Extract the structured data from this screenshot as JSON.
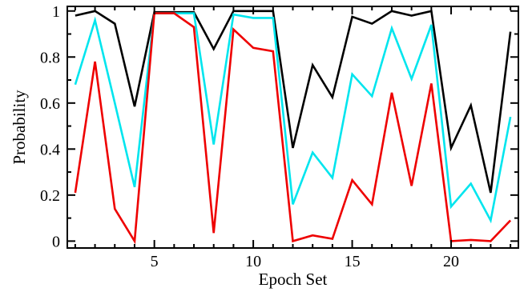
{
  "chart_data": {
    "type": "line",
    "xlabel": "Epoch Set",
    "ylabel": "Probability",
    "xlim": [
      0.6,
      23.4
    ],
    "ylim": [
      -0.03,
      1.02
    ],
    "x": [
      1,
      2,
      3,
      4,
      5,
      6,
      7,
      8,
      9,
      10,
      11,
      12,
      13,
      14,
      15,
      16,
      17,
      18,
      19,
      20,
      21,
      22,
      23
    ],
    "x_ticks": [
      5,
      10,
      15,
      20
    ],
    "x_tick_labels": [
      "5",
      "10",
      "15",
      "20"
    ],
    "x_minor_ticks": [
      1,
      2,
      3,
      4,
      6,
      7,
      8,
      9,
      11,
      12,
      13,
      14,
      16,
      17,
      18,
      19,
      21,
      22,
      23
    ],
    "y_ticks": [
      0,
      0.2,
      0.4,
      0.6,
      0.8,
      1
    ],
    "y_tick_labels": [
      "0",
      "0.2",
      "0.4",
      "0.6",
      "0.8",
      "1"
    ],
    "y_minor_ticks": [
      0.1,
      0.3,
      0.5,
      0.7,
      0.9
    ],
    "grid": false,
    "legend": "none",
    "series": [
      {
        "color": "#000000",
        "values": [
          0.98,
          1.0,
          0.945,
          0.585,
          0.995,
          0.995,
          0.995,
          0.835,
          1.0,
          1.0,
          1.0,
          0.405,
          0.765,
          0.625,
          0.975,
          0.945,
          1.0,
          0.98,
          1.0,
          0.405,
          0.59,
          0.21,
          0.91
        ]
      },
      {
        "color": "#00e5ee",
        "values": [
          0.68,
          0.96,
          0.6,
          0.235,
          0.99,
          0.99,
          0.99,
          0.42,
          0.985,
          0.97,
          0.97,
          0.16,
          0.385,
          0.275,
          0.725,
          0.63,
          0.925,
          0.705,
          0.94,
          0.15,
          0.25,
          0.09,
          0.54
        ]
      },
      {
        "color": "#ee0000",
        "values": [
          0.21,
          0.78,
          0.14,
          0.0,
          0.99,
          0.99,
          0.93,
          0.035,
          0.92,
          0.84,
          0.825,
          0.0,
          0.025,
          0.01,
          0.265,
          0.16,
          0.645,
          0.24,
          0.685,
          0.0,
          0.005,
          0.0,
          0.09
        ]
      }
    ]
  }
}
